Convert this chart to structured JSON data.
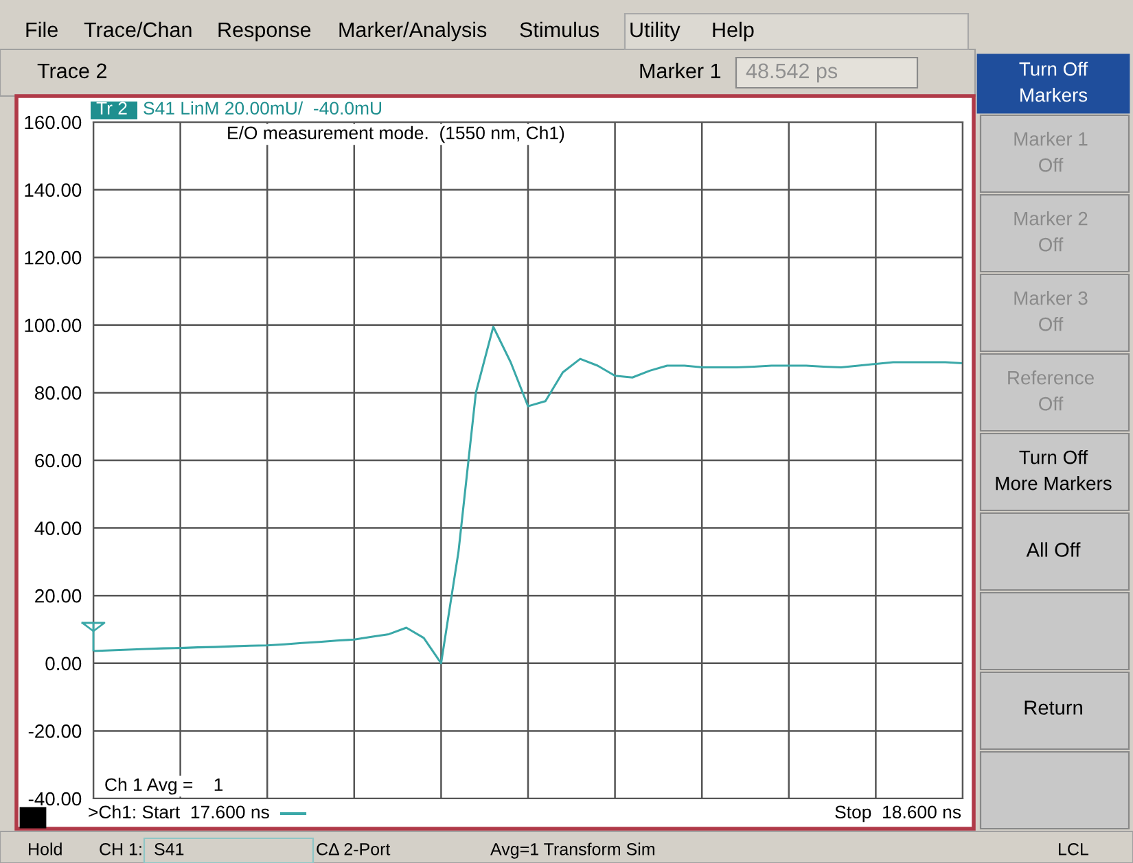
{
  "chart_data": {
    "type": "line",
    "title": "S41 LinM 20.00mU/  -40.0mU",
    "categories": [
      null,
      null,
      null,
      null,
      null,
      null,
      null,
      null,
      null,
      null,
      null,
      null,
      null,
      null,
      null,
      null,
      null,
      null,
      null,
      null,
      null,
      null,
      null,
      null,
      null,
      null,
      null,
      null,
      null,
      null,
      null,
      null,
      null,
      null,
      null,
      null,
      null,
      null,
      null,
      null,
      null,
      null,
      null,
      null,
      null,
      null,
      null,
      null,
      null,
      null,
      null
    ],
    "series": [
      {
        "color": "#3aa8a8",
        "values": [
          3.6,
          3.8,
          4.0,
          4.2,
          4.4,
          4.5,
          4.7,
          4.8,
          5.0,
          5.2,
          5.3,
          5.6,
          6.0,
          6.3,
          6.7,
          7.0,
          7.8,
          8.6,
          10.5,
          7.5,
          0,
          33,
          80,
          99.5,
          89,
          76,
          77.5,
          86,
          90,
          88,
          85,
          84.5,
          86.5,
          88,
          88,
          87.5,
          87.5,
          87.5,
          87.7,
          88,
          88,
          88,
          87.7,
          87.5,
          88,
          88.5,
          89,
          89,
          89,
          89,
          88.7
        ]
      }
    ],
    "ylim": [
      -40,
      160
    ],
    "yticks": [
      {
        "value": 160,
        "label": "160.00"
      },
      {
        "value": 140,
        "label": "140.00"
      },
      {
        "value": 120,
        "label": "120.00"
      },
      {
        "value": 100,
        "label": "100.00"
      },
      {
        "value": 80,
        "label": "80.00"
      },
      {
        "value": 60,
        "label": "60.00"
      },
      {
        "value": 40,
        "label": "40.00"
      },
      {
        "value": 20,
        "label": "20.00"
      },
      {
        "value": 0,
        "label": "0.00"
      },
      {
        "value": -20,
        "label": "-20.00"
      },
      {
        "value": -40,
        "label": "-40.00"
      }
    ],
    "grid": true,
    "tick_labels": "y",
    "annotations": [
      "File",
      "Trace/Chan",
      "Response",
      "Marker/Analysis",
      "Stimulus",
      "Utility",
      "Help",
      "Trace 2",
      "Marker 1",
      "48.542 ps",
      "Turn Off\nMarkers",
      "Marker 1\nOff",
      "Marker 2\nOff",
      "Marker 3\nOff",
      "Reference\nOff",
      "Turn Off\nMore Markers",
      "All Off",
      "Return",
      "Hold",
      "CH 1:",
      "S41",
      "CΔ 2-Port",
      "Avg=1 Transform Sim",
      "LCL",
      "Tr 2",
      "E/O measurement mode.  (1550 nm, Ch1)",
      "Ch 1 Avg =    1",
      ">Ch1: Start  17.600 ns",
      "Stop  18.600 ns"
    ]
  }
}
